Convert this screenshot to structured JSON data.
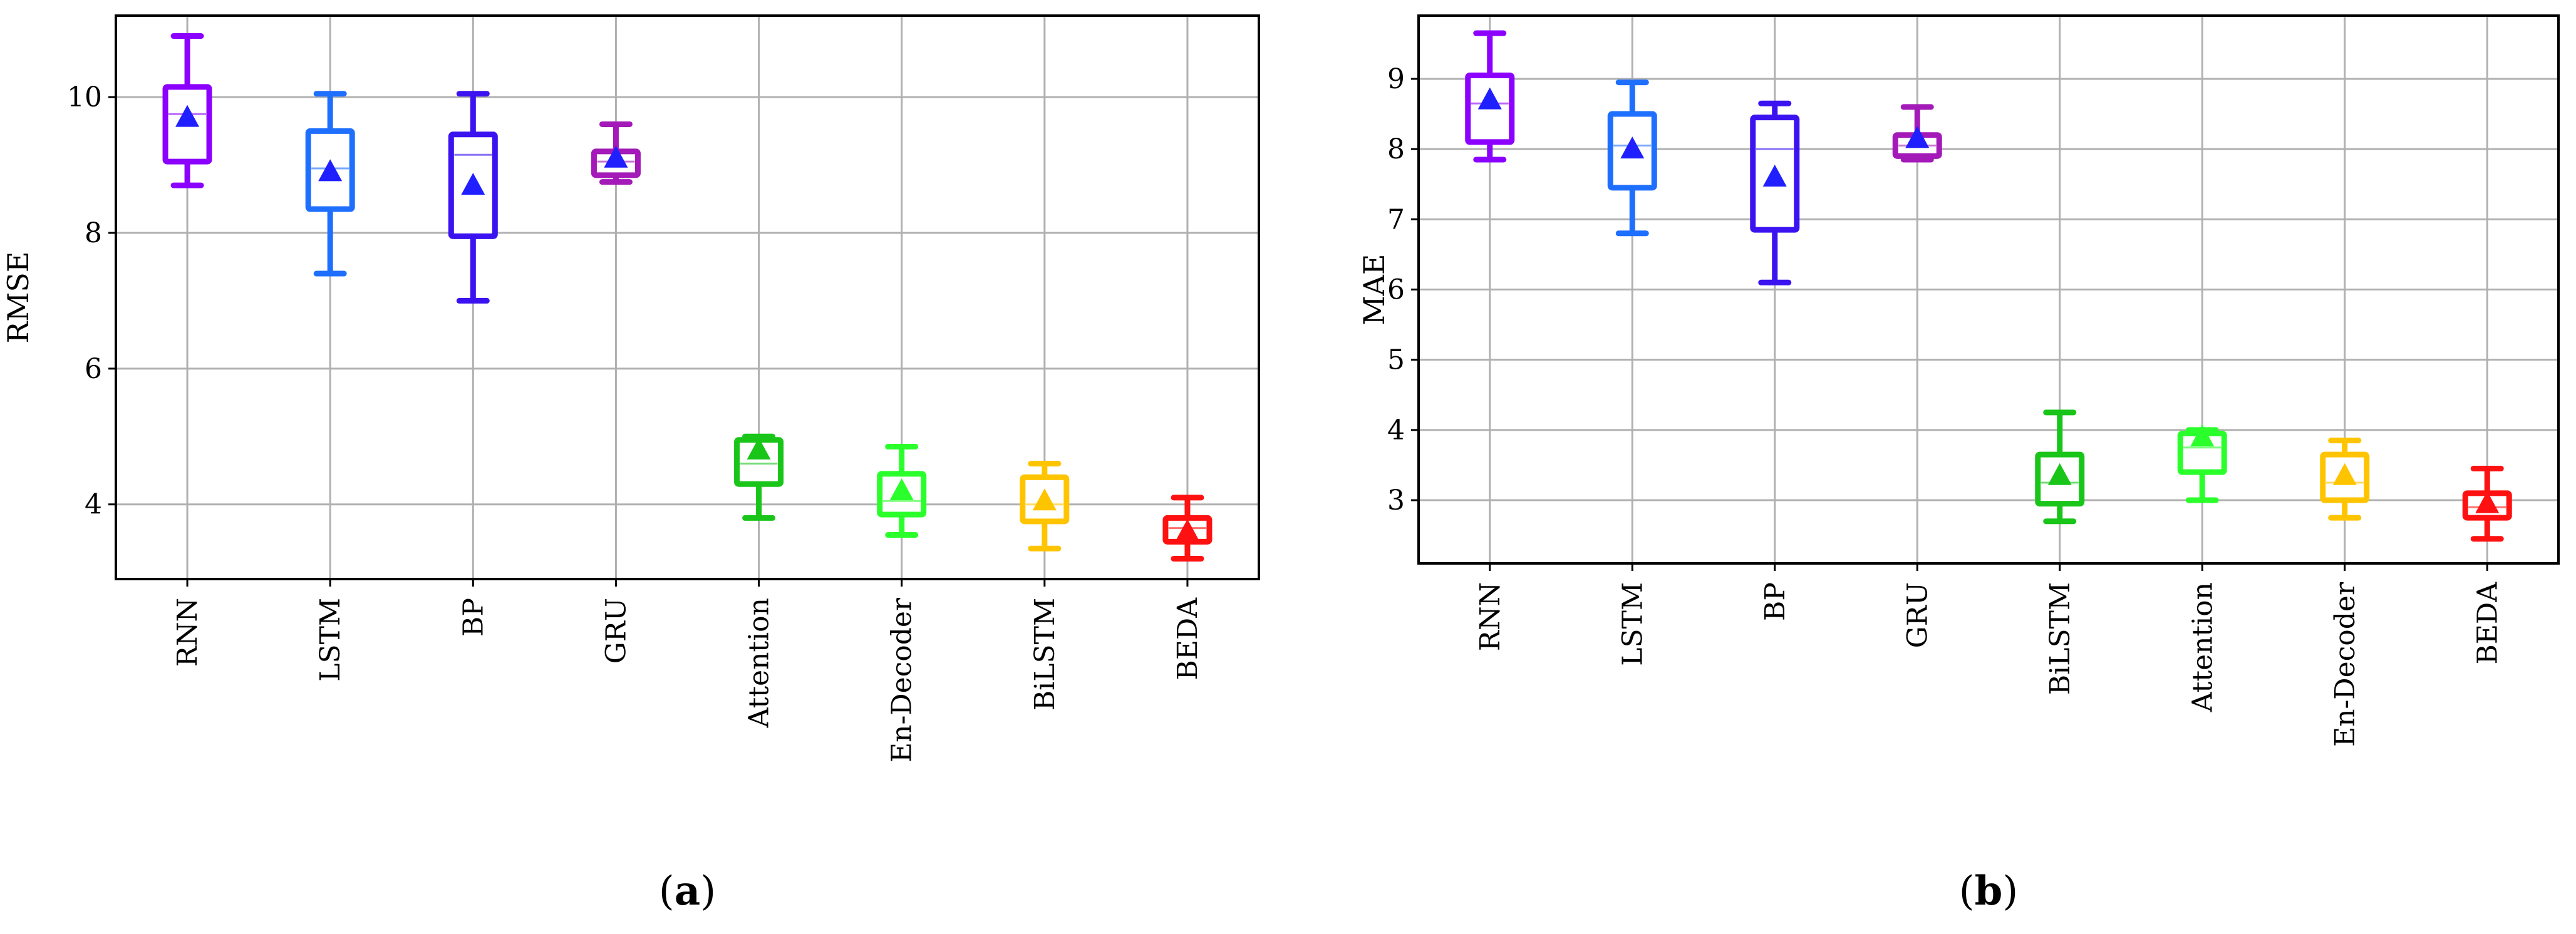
{
  "chart_data": [
    {
      "type": "box",
      "panel_label": "a",
      "ylabel": "RMSE",
      "xlabel": "",
      "ylim": [
        2.9,
        11.2
      ],
      "yticks": [
        4,
        6,
        8,
        10
      ],
      "grid": true,
      "categories": [
        "RNN",
        "LSTM",
        "BP",
        "GRU",
        "Attention",
        "En-Decoder",
        "BiLSTM",
        "BEDA"
      ],
      "boxes": [
        {
          "name": "RNN",
          "whisker_low": 8.7,
          "q1": 9.05,
          "median": 9.75,
          "q3": 10.15,
          "whisker_high": 10.9,
          "mean": 9.7,
          "color": "#8b00ff"
        },
        {
          "name": "LSTM",
          "whisker_low": 7.4,
          "q1": 8.35,
          "median": 8.95,
          "q3": 9.5,
          "whisker_high": 10.05,
          "mean": 8.9,
          "color": "#1f6fff"
        },
        {
          "name": "BP",
          "whisker_low": 7.0,
          "q1": 7.95,
          "median": 9.15,
          "q3": 9.45,
          "whisker_high": 10.05,
          "mean": 8.7,
          "color": "#3b13f0"
        },
        {
          "name": "GRU",
          "whisker_low": 8.75,
          "q1": 8.85,
          "median": 9.05,
          "q3": 9.2,
          "whisker_high": 9.6,
          "mean": 9.1,
          "color": "#a31ab8"
        },
        {
          "name": "Attention",
          "whisker_low": 3.8,
          "q1": 4.3,
          "median": 4.6,
          "q3": 4.95,
          "whisker_high": 5.0,
          "mean": 4.8,
          "color": "#19c519"
        },
        {
          "name": "En-Decoder",
          "whisker_low": 3.55,
          "q1": 3.85,
          "median": 4.05,
          "q3": 4.45,
          "whisker_high": 4.85,
          "mean": 4.2,
          "color": "#2bff2b"
        },
        {
          "name": "BiLSTM",
          "whisker_low": 3.35,
          "q1": 3.75,
          "median": 4.0,
          "q3": 4.4,
          "whisker_high": 4.6,
          "mean": 4.05,
          "color": "#ffc400"
        },
        {
          "name": "BEDA",
          "whisker_low": 3.2,
          "q1": 3.45,
          "median": 3.65,
          "q3": 3.8,
          "whisker_high": 4.1,
          "mean": 3.6,
          "color": "#ff1111"
        }
      ]
    },
    {
      "type": "box",
      "panel_label": "b",
      "ylabel": "MAE",
      "xlabel": "",
      "ylim": [
        2.1,
        9.9
      ],
      "yticks": [
        3,
        4,
        5,
        6,
        7,
        8,
        9
      ],
      "grid": true,
      "categories": [
        "RNN",
        "LSTM",
        "BP",
        "GRU",
        "BiLSTM",
        "Attention",
        "En-Decoder",
        "BEDA"
      ],
      "boxes": [
        {
          "name": "RNN",
          "whisker_low": 7.85,
          "q1": 8.1,
          "median": 8.65,
          "q3": 9.05,
          "whisker_high": 9.65,
          "mean": 8.7,
          "color": "#8b00ff"
        },
        {
          "name": "LSTM",
          "whisker_low": 6.8,
          "q1": 7.45,
          "median": 8.05,
          "q3": 8.5,
          "whisker_high": 8.95,
          "mean": 8.0,
          "color": "#1f6fff"
        },
        {
          "name": "BP",
          "whisker_low": 6.1,
          "q1": 6.85,
          "median": 8.0,
          "q3": 8.45,
          "whisker_high": 8.65,
          "mean": 7.6,
          "color": "#3b13f0"
        },
        {
          "name": "GRU",
          "whisker_low": 7.85,
          "q1": 7.9,
          "median": 8.05,
          "q3": 8.2,
          "whisker_high": 8.6,
          "mean": 8.15,
          "color": "#a31ab8"
        },
        {
          "name": "BiLSTM",
          "whisker_low": 2.7,
          "q1": 2.95,
          "median": 3.25,
          "q3": 3.65,
          "whisker_high": 4.25,
          "mean": 3.35,
          "color": "#19c519"
        },
        {
          "name": "Attention",
          "whisker_low": 3.0,
          "q1": 3.4,
          "median": 3.75,
          "q3": 3.95,
          "whisker_high": 4.0,
          "mean": 3.9,
          "color": "#2bff2b"
        },
        {
          "name": "En-Decoder",
          "whisker_low": 2.75,
          "q1": 3.0,
          "median": 3.25,
          "q3": 3.65,
          "whisker_high": 3.85,
          "mean": 3.35,
          "color": "#ffc400"
        },
        {
          "name": "BEDA",
          "whisker_low": 2.45,
          "q1": 2.75,
          "median": 2.9,
          "q3": 3.1,
          "whisker_high": 3.45,
          "mean": 2.95,
          "color": "#ff1111"
        }
      ]
    }
  ],
  "colors": {
    "grid": "#b0b0b0",
    "frame": "#000000",
    "median_line": "#ffffff",
    "mean_marker_default": "#1f1fff"
  }
}
